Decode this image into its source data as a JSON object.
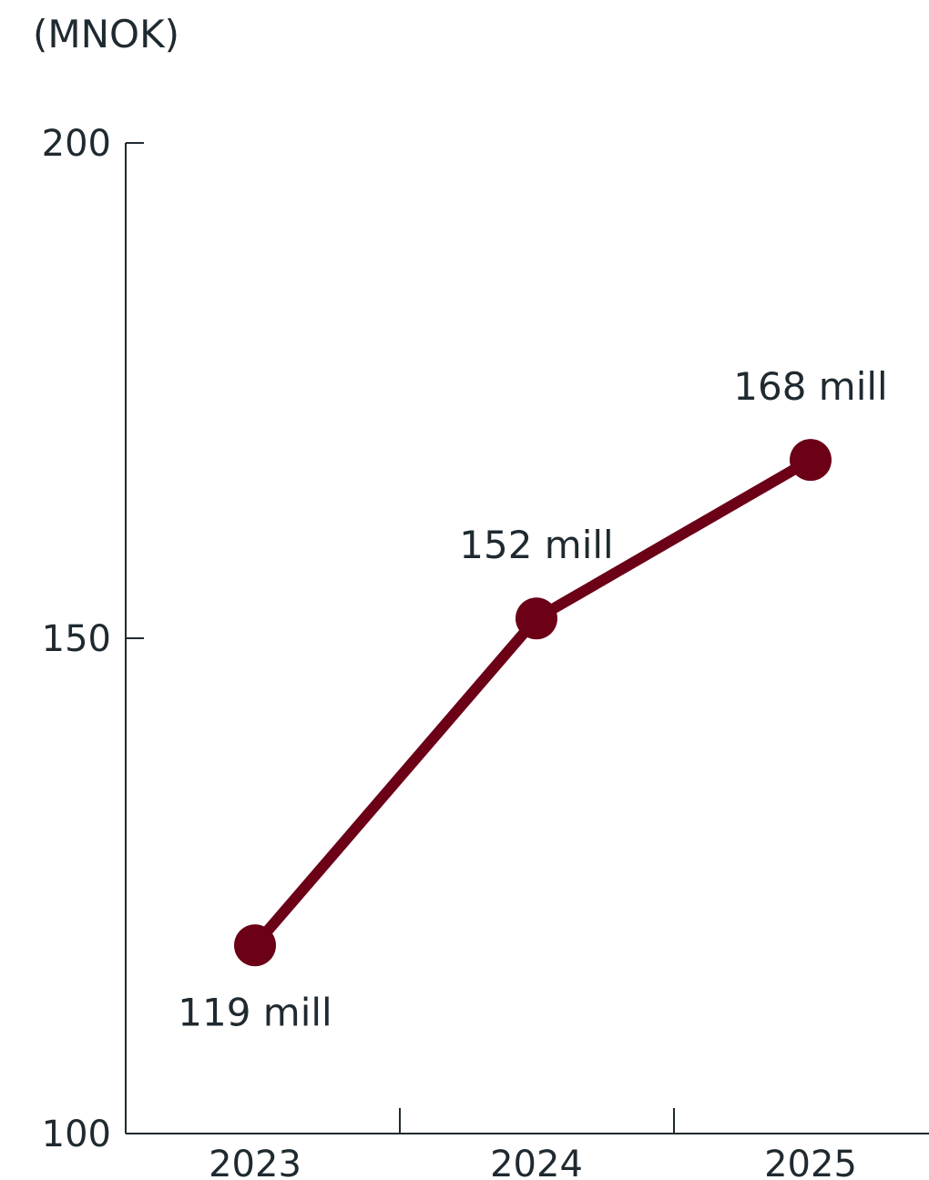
{
  "chart_data": {
    "type": "line",
    "unit_label": "(MNOK)",
    "categories": [
      "2023",
      "2024",
      "2025"
    ],
    "values": [
      119,
      152,
      168
    ],
    "data_labels": [
      "119 mill",
      "152 mill",
      "168 mill"
    ],
    "yticks": [
      "200",
      "150",
      "100"
    ],
    "ylim": [
      100,
      200
    ],
    "grid": false,
    "line_color": "#6b0017",
    "text_color": "#1f2a30"
  }
}
